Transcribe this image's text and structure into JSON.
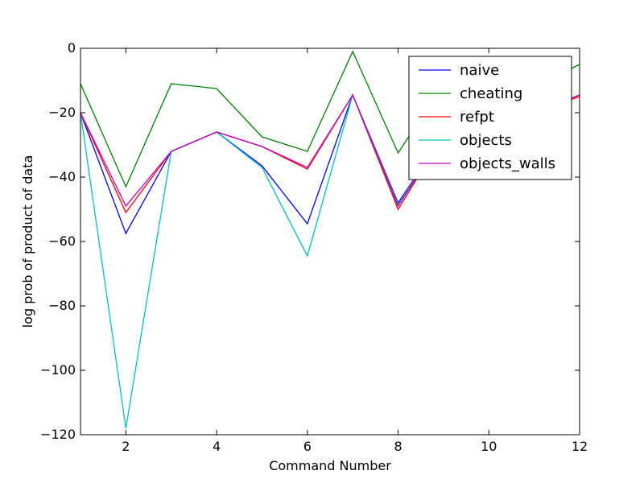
{
  "chart_data": {
    "type": "line",
    "title": "",
    "xlabel": "Command Number",
    "ylabel": "log prob of product of data",
    "xlim": [
      1,
      12
    ],
    "ylim": [
      -120,
      0
    ],
    "xticks": [
      2,
      4,
      6,
      8,
      10,
      12
    ],
    "yticks": [
      0,
      -20,
      -40,
      -60,
      -80,
      -100,
      -120
    ],
    "xtick_labels": [
      "2",
      "4",
      "6",
      "8",
      "10",
      "12"
    ],
    "ytick_labels": [
      "0",
      "−20",
      "−40",
      "−60",
      "−80",
      "−100",
      "−120"
    ],
    "grid": false,
    "legend_position": "top-right",
    "x": [
      1,
      2,
      3,
      4,
      5,
      6,
      7,
      8,
      9,
      10,
      11,
      12
    ],
    "series": [
      {
        "name": "naive",
        "color": "#0000ff",
        "values": [
          -20,
          -57.5,
          -32,
          -26,
          -36.5,
          -54.5,
          -14.5,
          -48,
          -27,
          -21,
          -20,
          -14.5
        ]
      },
      {
        "name": "cheating",
        "color": "#008000",
        "values": [
          -11,
          -43,
          -11,
          -12.5,
          -27.5,
          -32,
          -1,
          -32.5,
          -11,
          -8,
          -12,
          -5
        ]
      },
      {
        "name": "refpt",
        "color": "#ff0000",
        "values": [
          -20,
          -51,
          -32,
          -26,
          -30.5,
          -37.5,
          -14.5,
          -50,
          -27,
          -21,
          -20,
          -15
        ]
      },
      {
        "name": "objects",
        "color": "#00bfbf",
        "values": [
          -20,
          -118,
          -32,
          -26,
          -37,
          -64.5,
          -14.5,
          -48.5,
          -27,
          -21,
          -20,
          -14.5
        ]
      },
      {
        "name": "objects_walls",
        "color": "#bf00bf",
        "values": [
          -20,
          -49,
          -32,
          -26,
          -30.5,
          -37,
          -14.5,
          -49,
          -27,
          -21,
          -20,
          -14.5
        ]
      }
    ]
  }
}
